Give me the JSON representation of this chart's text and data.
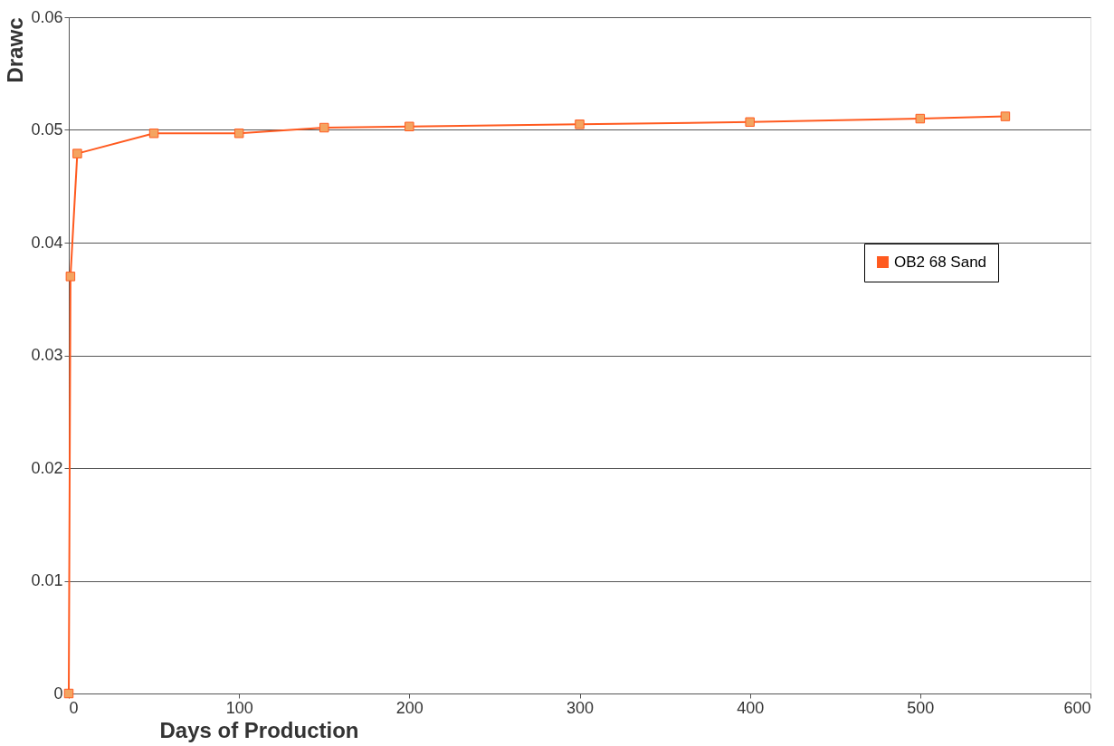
{
  "chart_data": {
    "type": "line",
    "xlabel": "Days of Production",
    "ylabel": "Drawc",
    "series": [
      {
        "name": "OB2 68 Sand",
        "color": "#ff5a1f",
        "x": [
          0,
          1,
          5,
          50,
          100,
          150,
          200,
          300,
          400,
          500,
          550
        ],
        "values": [
          0,
          0.037,
          0.0479,
          0.0497,
          0.0497,
          0.0502,
          0.0503,
          0.0505,
          0.0507,
          0.051,
          0.0512
        ]
      }
    ],
    "xlim": [
      0,
      600
    ],
    "xticks": [
      0,
      100,
      200,
      300,
      400,
      500,
      600
    ],
    "ylim": [
      0,
      0.06
    ],
    "yticks": [
      0,
      0.01,
      0.02,
      0.03,
      0.04,
      0.05,
      0.06
    ],
    "grid": "y",
    "legend": "right",
    "marker": "square",
    "line_style": "solid"
  }
}
